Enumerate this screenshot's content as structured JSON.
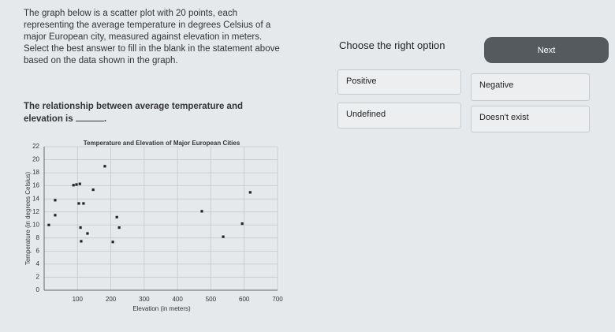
{
  "question": {
    "text": "The graph below is a scatter plot with 20 points, each representing the average temperature in degrees Celsius of a major European city, measured against elevation in meters. Select the best answer to fill in the blank in the statement above based on the data shown in the graph.",
    "statement_prefix": "The relationship between average temperature and elevation is",
    "statement_suffix": "."
  },
  "answers": {
    "prompt": "Choose the right option",
    "next": "Next",
    "options": [
      "Positive",
      "Negative",
      "Undefined",
      "Doesn't exist"
    ]
  },
  "chart_data": {
    "type": "scatter",
    "title": "Temperature and Elevation of Major European Cities",
    "x_label": "Elevation (in meters)",
    "y_label": "Temperature (in degrees Celsius)",
    "x": [
      182,
      88,
      97,
      107,
      147,
      618,
      33,
      104,
      118,
      473,
      33,
      218,
      14,
      594,
      109,
      225,
      130,
      537,
      111,
      206
    ],
    "values": [
      19,
      16.1,
      16.2,
      16.3,
      15.4,
      15,
      13.8,
      13.3,
      13.3,
      12.1,
      11.5,
      11.2,
      10,
      10.2,
      9.6,
      9.6,
      8.7,
      8.2,
      7.5,
      7.4
    ],
    "color": "#222222",
    "xlim": [
      0,
      700
    ],
    "xticks": [
      100,
      200,
      300,
      400,
      500,
      600,
      700
    ],
    "ylim": [
      0,
      22
    ],
    "yticks": [
      0,
      2,
      4,
      6,
      8,
      10,
      12,
      14,
      16,
      18,
      20,
      22
    ],
    "grid": true
  }
}
